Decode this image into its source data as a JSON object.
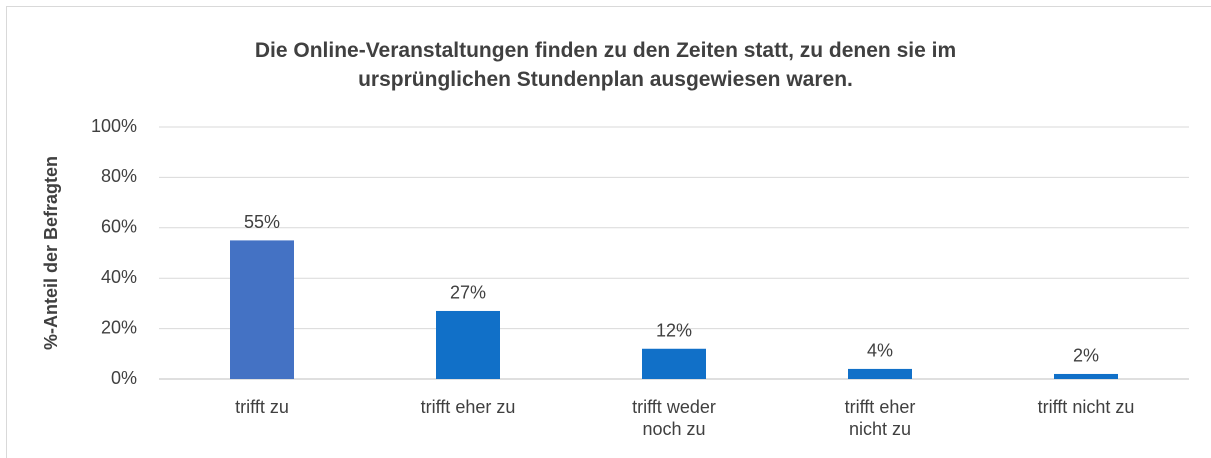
{
  "chart_data": {
    "type": "bar",
    "title": "Die Online-Veranstaltungen finden zu den Zeiten statt, zu denen sie im ursprünglichen Stundenplan ausgewiesen waren.",
    "y_label": "%-Anteil der Befragten",
    "categories": [
      "trifft zu",
      "trifft eher zu",
      "trifft weder noch zu",
      "trifft eher nicht zu",
      "trifft nicht zu"
    ],
    "values": [
      55,
      27,
      12,
      4,
      2
    ],
    "value_labels": [
      "55%",
      "27%",
      "12%",
      "4%",
      "2%"
    ],
    "colors": [
      "#4472c4",
      "#1170c8",
      "#1170c8",
      "#1170c8",
      "#1170c8"
    ],
    "ylim": [
      0,
      100
    ],
    "yticks": [
      {
        "value": 0,
        "label": "0%"
      },
      {
        "value": 20,
        "label": "20%"
      },
      {
        "value": 40,
        "label": "40%"
      },
      {
        "value": 60,
        "label": "60%"
      },
      {
        "value": 80,
        "label": "80%"
      },
      {
        "value": 100,
        "label": "100%"
      }
    ],
    "grid": true
  }
}
